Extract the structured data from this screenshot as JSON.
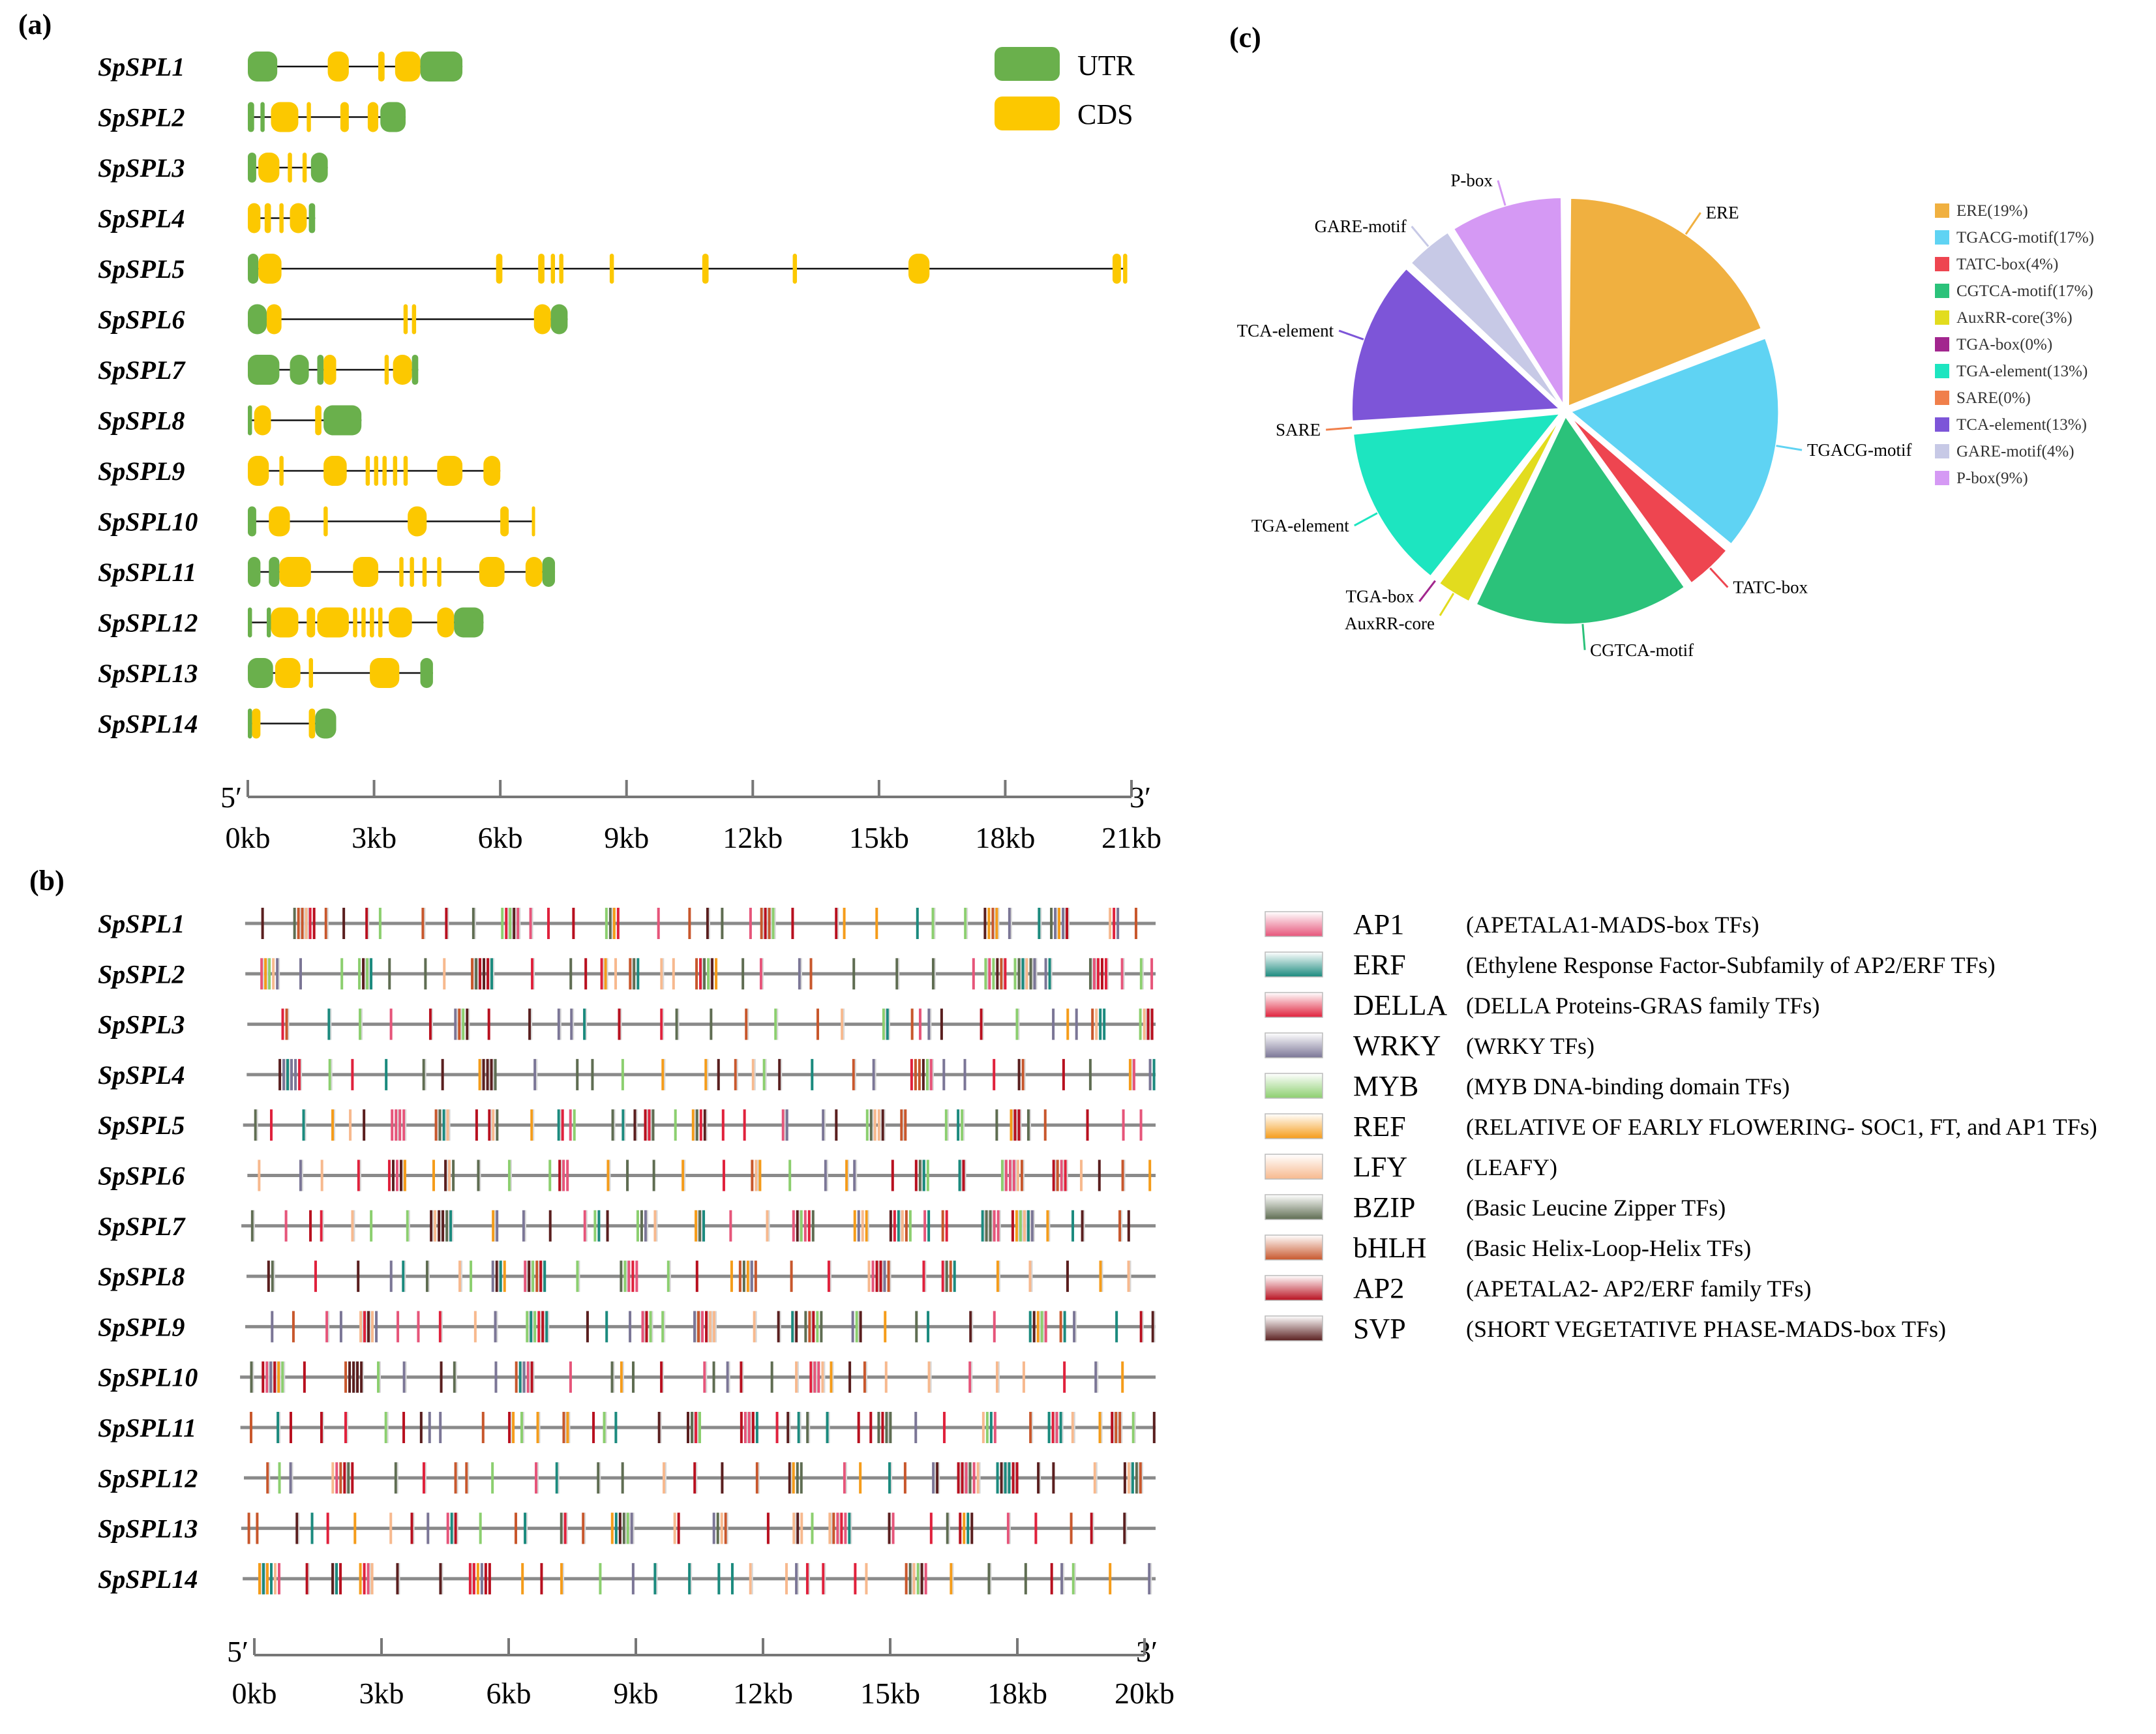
{
  "panels": {
    "a": {
      "label": "(a)",
      "genes": [
        "SpSPL1",
        "SpSPL2",
        "SpSPL3",
        "SpSPL4",
        "SpSPL5",
        "SpSPL6",
        "SpSPL7",
        "SpSPL8",
        "SpSPL9",
        "SpSPL10",
        "SpSPL11",
        "SpSPL12",
        "SpSPL13",
        "SpSPL14"
      ],
      "legend": [
        {
          "name": "UTR",
          "color": "#6ab04c"
        },
        {
          "name": "CDS",
          "color": "#fcc800"
        }
      ],
      "axis": {
        "start": "5′",
        "end": "3′",
        "ticks": [
          "0kb",
          "3kb",
          "6kb",
          "9kb",
          "12kb",
          "15kb",
          "18kb",
          "21kb"
        ],
        "max_kb": 21
      },
      "gene_structures": [
        {
          "gene": "SpSPL1",
          "span": [
            0,
            5.1
          ],
          "features": [
            [
              "UTR",
              0,
              0.7
            ],
            [
              "CDS",
              1.9,
              2.4
            ],
            [
              "CDS",
              3.1,
              3.25
            ],
            [
              "CDS",
              3.5,
              4.1
            ],
            [
              "UTR",
              4.1,
              5.1
            ]
          ]
        },
        {
          "gene": "SpSPL2",
          "span": [
            0,
            3.75
          ],
          "features": [
            [
              "UTR",
              0,
              0.15
            ],
            [
              "UTR",
              0.3,
              0.4
            ],
            [
              "CDS",
              0.55,
              1.2
            ],
            [
              "CDS",
              1.4,
              1.5
            ],
            [
              "CDS",
              2.2,
              2.4
            ],
            [
              "CDS",
              2.85,
              3.1
            ],
            [
              "UTR",
              3.15,
              3.75
            ]
          ]
        },
        {
          "gene": "SpSPL3",
          "span": [
            0,
            1.9
          ],
          "features": [
            [
              "UTR",
              0,
              0.2
            ],
            [
              "CDS",
              0.25,
              0.75
            ],
            [
              "CDS",
              0.95,
              1.05
            ],
            [
              "CDS",
              1.3,
              1.4
            ],
            [
              "UTR",
              1.5,
              1.9
            ]
          ]
        },
        {
          "gene": "SpSPL4",
          "span": [
            0,
            1.6
          ],
          "features": [
            [
              "CDS",
              0,
              0.3
            ],
            [
              "CDS",
              0.4,
              0.55
            ],
            [
              "CDS",
              0.75,
              0.85
            ],
            [
              "CDS",
              1.0,
              1.4
            ],
            [
              "UTR",
              1.45,
              1.6
            ]
          ]
        },
        {
          "gene": "SpSPL5",
          "span": [
            0,
            20.9
          ],
          "features": [
            [
              "UTR",
              0,
              0.25
            ],
            [
              "CDS",
              0.25,
              0.8
            ],
            [
              "CDS",
              5.9,
              6.05
            ],
            [
              "CDS",
              6.9,
              7.05
            ],
            [
              "CDS",
              7.2,
              7.3
            ],
            [
              "CDS",
              7.4,
              7.5
            ],
            [
              "CDS",
              8.6,
              8.7
            ],
            [
              "CDS",
              10.8,
              10.95
            ],
            [
              "CDS",
              12.95,
              13.05
            ],
            [
              "CDS",
              15.7,
              16.2
            ],
            [
              "CDS",
              20.55,
              20.75
            ],
            [
              "CDS",
              20.8,
              20.9
            ]
          ]
        },
        {
          "gene": "SpSPL6",
          "span": [
            0,
            7.6
          ],
          "features": [
            [
              "UTR",
              0,
              0.45
            ],
            [
              "CDS",
              0.45,
              0.8
            ],
            [
              "CDS",
              3.7,
              3.8
            ],
            [
              "CDS",
              3.9,
              4.0
            ],
            [
              "CDS",
              6.8,
              7.2
            ],
            [
              "UTR",
              7.2,
              7.6
            ]
          ]
        },
        {
          "gene": "SpSPL7",
          "span": [
            0,
            4.05
          ],
          "features": [
            [
              "UTR",
              0,
              0.75
            ],
            [
              "UTR",
              1.0,
              1.45
            ],
            [
              "UTR",
              1.65,
              1.8
            ],
            [
              "CDS",
              1.8,
              2.1
            ],
            [
              "CDS",
              3.25,
              3.35
            ],
            [
              "CDS",
              3.45,
              3.9
            ],
            [
              "UTR",
              3.9,
              4.05
            ]
          ]
        },
        {
          "gene": "SpSPL8",
          "span": [
            0,
            2.7
          ],
          "features": [
            [
              "UTR",
              0,
              0.1
            ],
            [
              "CDS",
              0.15,
              0.55
            ],
            [
              "CDS",
              1.6,
              1.75
            ],
            [
              "UTR",
              1.8,
              2.7
            ]
          ]
        },
        {
          "gene": "SpSPL9",
          "span": [
            0,
            6.0
          ],
          "features": [
            [
              "CDS",
              0,
              0.5
            ],
            [
              "CDS",
              0.75,
              0.85
            ],
            [
              "CDS",
              1.8,
              2.35
            ],
            [
              "CDS",
              2.8,
              2.9
            ],
            [
              "CDS",
              3.0,
              3.1
            ],
            [
              "CDS",
              3.2,
              3.3
            ],
            [
              "CDS",
              3.45,
              3.55
            ],
            [
              "CDS",
              3.7,
              3.8
            ],
            [
              "CDS",
              4.5,
              5.1
            ],
            [
              "CDS",
              5.6,
              6.0
            ]
          ]
        },
        {
          "gene": "SpSPL10",
          "span": [
            0,
            6.8
          ],
          "features": [
            [
              "UTR",
              0,
              0.2
            ],
            [
              "CDS",
              0.5,
              1.0
            ],
            [
              "CDS",
              1.8,
              1.9
            ],
            [
              "CDS",
              3.8,
              4.25
            ],
            [
              "CDS",
              6.0,
              6.2
            ],
            [
              "CDS",
              6.75,
              6.8
            ]
          ]
        },
        {
          "gene": "SpSPL11",
          "span": [
            0,
            7.3
          ],
          "features": [
            [
              "UTR",
              0,
              0.3
            ],
            [
              "UTR",
              0.5,
              0.75
            ],
            [
              "CDS",
              0.75,
              1.5
            ],
            [
              "CDS",
              2.5,
              3.1
            ],
            [
              "CDS",
              3.6,
              3.7
            ],
            [
              "CDS",
              3.85,
              3.95
            ],
            [
              "CDS",
              4.15,
              4.25
            ],
            [
              "CDS",
              4.5,
              4.6
            ],
            [
              "CDS",
              5.5,
              6.1
            ],
            [
              "CDS",
              6.6,
              7.0
            ],
            [
              "UTR",
              7.0,
              7.3
            ]
          ]
        },
        {
          "gene": "SpSPL12",
          "span": [
            0,
            5.6
          ],
          "features": [
            [
              "UTR",
              0,
              0.1
            ],
            [
              "UTR",
              0.45,
              0.55
            ],
            [
              "CDS",
              0.55,
              1.2
            ],
            [
              "CDS",
              1.4,
              1.6
            ],
            [
              "CDS",
              1.65,
              2.4
            ],
            [
              "CDS",
              2.5,
              2.6
            ],
            [
              "CDS",
              2.7,
              2.8
            ],
            [
              "CDS",
              2.9,
              3.0
            ],
            [
              "CDS",
              3.1,
              3.2
            ],
            [
              "CDS",
              3.35,
              3.9
            ],
            [
              "CDS",
              4.5,
              4.9
            ],
            [
              "UTR",
              4.9,
              5.6
            ]
          ]
        },
        {
          "gene": "SpSPL13",
          "span": [
            0,
            4.4
          ],
          "features": [
            [
              "UTR",
              0,
              0.6
            ],
            [
              "CDS",
              0.65,
              1.25
            ],
            [
              "CDS",
              1.45,
              1.55
            ],
            [
              "CDS",
              2.9,
              3.6
            ],
            [
              "UTR",
              4.1,
              4.4
            ]
          ]
        },
        {
          "gene": "SpSPL14",
          "span": [
            0,
            2.1
          ],
          "features": [
            [
              "UTR",
              0,
              0.1
            ],
            [
              "CDS",
              0.1,
              0.3
            ],
            [
              "CDS",
              1.45,
              1.6
            ],
            [
              "UTR",
              1.6,
              2.1
            ]
          ]
        }
      ]
    },
    "b": {
      "label": "(b)",
      "genes": [
        "SpSPL1",
        "SpSPL2",
        "SpSPL3",
        "SpSPL4",
        "SpSPL5",
        "SpSPL6",
        "SpSPL7",
        "SpSPL8",
        "SpSPL9",
        "SpSPL10",
        "SpSPL11",
        "SpSPL12",
        "SpSPL13",
        "SpSPL14"
      ],
      "axis": {
        "start": "5′",
        "end": "3′",
        "ticks": [
          "0kb",
          "3kb",
          "6kb",
          "9kb",
          "12kb",
          "15kb",
          "18kb",
          "20kb"
        ]
      },
      "legend": [
        {
          "name": "AP1",
          "desc": "(APETALA1-MADS-box TFs)",
          "color": "#e6557a"
        },
        {
          "name": "ERF",
          "desc": "(Ethylene Response Factor-Subfamily of AP2/ERF TFs)",
          "color": "#1b8a7e"
        },
        {
          "name": "DELLA",
          "desc": "(DELLA Proteins-GRAS family TFs)",
          "color": "#e0213c"
        },
        {
          "name": "WRKY",
          "desc": "(WRKY TFs)",
          "color": "#7b7696"
        },
        {
          "name": "MYB",
          "desc": "(MYB DNA-binding domain TFs)",
          "color": "#8ccf6f"
        },
        {
          "name": "REF",
          "desc": "(RELATIVE OF EARLY FLOWERING- SOC1, FT, and AP1 TFs)",
          "color": "#f59c1a"
        },
        {
          "name": "LFY",
          "desc": "(LEAFY)",
          "color": "#f7b98e"
        },
        {
          "name": "BZIP",
          "desc": "(Basic Leucine Zipper TFs)",
          "color": "#5f6d52"
        },
        {
          "name": "bHLH",
          "desc": "(Basic Helix-Loop-Helix TFs)",
          "color": "#c8572c"
        },
        {
          "name": "AP2",
          "desc": "(APETALA2- AP2/ERF family TFs)",
          "color": "#b8101f"
        },
        {
          "name": "SVP",
          "desc": "(SHORT VEGETATIVE PHASE-MADS-box TFs)",
          "color": "#5a1f1f"
        }
      ]
    },
    "c": {
      "label": "(c)",
      "pie_labels": [
        "ERE",
        "TGACG-motif",
        "TATC-box",
        "CGTCA-motif",
        "AuxRR-core",
        "TGA-box",
        "TGA-element",
        "SARE",
        "TCA-element",
        "GARE-motif",
        "P-box"
      ]
    }
  },
  "chart_data": {
    "type": "pie",
    "slices": [
      {
        "label": "ERE",
        "legend": "ERE(19%)",
        "value": 19,
        "color": "#f0b040"
      },
      {
        "label": "TGACG-motif",
        "legend": "TGACG-motif(17%)",
        "value": 17,
        "color": "#5fd3f3"
      },
      {
        "label": "TATC-box",
        "legend": "TATC-box(4%)",
        "value": 4,
        "color": "#ee4550"
      },
      {
        "label": "CGTCA-motif",
        "legend": "CGTCA-motif(17%)",
        "value": 17,
        "color": "#2bc27a"
      },
      {
        "label": "AuxRR-core",
        "legend": "AuxRR-core(3%)",
        "value": 3,
        "color": "#e2dc1e"
      },
      {
        "label": "TGA-box",
        "legend": "TGA-box(0%)",
        "value": 0.3,
        "color": "#a2268e"
      },
      {
        "label": "TGA-element",
        "legend": "TGA-element(13%)",
        "value": 13,
        "color": "#1de5c0"
      },
      {
        "label": "SARE",
        "legend": "SARE(0%)",
        "value": 0.3,
        "color": "#f07f4b"
      },
      {
        "label": "TCA-element",
        "legend": "TCA-element(13%)",
        "value": 13,
        "color": "#7d55d8"
      },
      {
        "label": "GARE-motif",
        "legend": "GARE-motif(4%)",
        "value": 4,
        "color": "#c7c9e6"
      },
      {
        "label": "P-box",
        "legend": "P-box(9%)",
        "value": 9,
        "color": "#d599f4"
      }
    ]
  }
}
